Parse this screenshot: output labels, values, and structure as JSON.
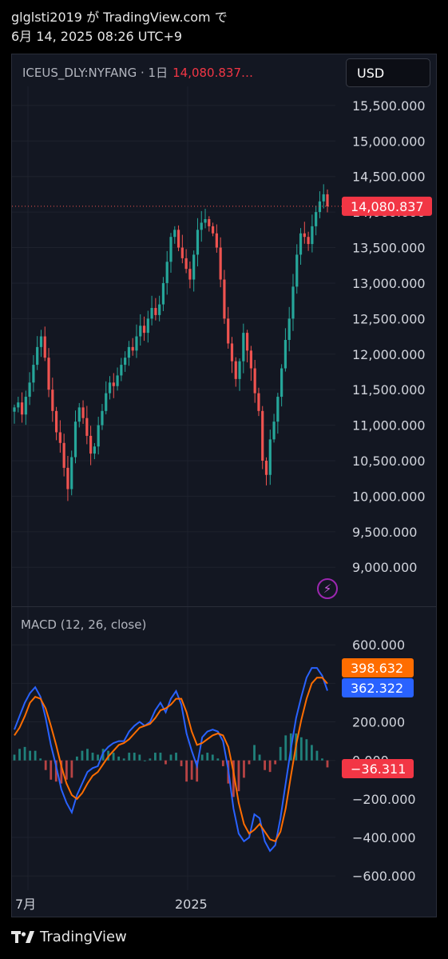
{
  "header": {
    "line1": "glglsti2019 が TradingView.com で",
    "line2": "6月 14, 2025 08:26 UTC+9"
  },
  "toolbar": {
    "symbol": "ICEUS_DLY:NYFANG · 1日",
    "last_value": "14,080.837…",
    "currency": "USD"
  },
  "footer": {
    "brand": "TradingView"
  },
  "colors": {
    "up": "#26a69a",
    "down": "#ef5350",
    "macd": "#2962ff",
    "signal": "#ff6d00",
    "price_tag": "#f23645"
  },
  "chart_data": [
    {
      "type": "candlestick",
      "title": "ICEUS_DLY:NYFANG · 1日",
      "y_ticks": [
        "15,500.000",
        "15,000.000",
        "14,500.000",
        "14,000.000",
        "13,500.000",
        "13,000.000",
        "12,500.000",
        "12,000.000",
        "11,500.000",
        "11,000.000",
        "10,500.000",
        "10,000.000",
        "9,500.000",
        "9,000.000"
      ],
      "ylim": [
        8800,
        15600
      ],
      "x_ticks": [
        "7月",
        "2025"
      ],
      "last_price_label": "14,080.837",
      "last_price": 14080.837,
      "approx_closes": [
        11250,
        11320,
        11150,
        11400,
        11600,
        11850,
        12100,
        12250,
        11950,
        11500,
        11200,
        10900,
        10750,
        10400,
        10100,
        10550,
        11050,
        11250,
        11100,
        10850,
        10600,
        10700,
        11000,
        11200,
        11450,
        11600,
        11550,
        11700,
        11850,
        11950,
        12100,
        12050,
        12250,
        12400,
        12300,
        12500,
        12650,
        12550,
        12700,
        13000,
        13300,
        13650,
        13750,
        13500,
        13350,
        13200,
        13050,
        13400,
        13750,
        13850,
        13900,
        13800,
        13700,
        13500,
        13050,
        12500,
        12150,
        11900,
        11650,
        11900,
        12300,
        12050,
        11800,
        11450,
        11200,
        10500,
        10300,
        10800,
        11050,
        11400,
        11800,
        12200,
        12500,
        12950,
        13400,
        13700,
        13650,
        13550,
        13800,
        14000,
        14150,
        14250,
        14080
      ]
    },
    {
      "type": "line",
      "title": "MACD (12, 26, close)",
      "y_ticks": [
        "600.000",
        "400.000",
        "200.000",
        "0.000",
        "−200.000",
        "−400.000",
        "−600.000"
      ],
      "ylim": [
        -620,
        630
      ],
      "series": [
        {
          "name": "",
          "values": [
            160,
            230,
            300,
            350,
            380,
            330,
            220,
            80,
            -30,
            -150,
            -220,
            -270,
            -180,
            -120,
            -60,
            -40,
            -30,
            40,
            70,
            90,
            100,
            100,
            150,
            180,
            200,
            180,
            200,
            260,
            300,
            250,
            320,
            360,
            290,
            140,
            50,
            -30,
            120,
            150,
            160,
            150,
            100,
            -50,
            -250,
            -380,
            -420,
            -400,
            -280,
            -300,
            -420,
            -470,
            -440,
            -300,
            -120,
            60,
            220,
            330,
            430,
            480,
            480,
            440,
            362.322
          ]
        },
        {
          "name": "",
          "values": [
            130,
            170,
            230,
            300,
            330,
            320,
            270,
            180,
            80,
            -30,
            -120,
            -180,
            -200,
            -170,
            -120,
            -80,
            -60,
            -20,
            20,
            50,
            80,
            90,
            110,
            140,
            170,
            180,
            190,
            220,
            260,
            270,
            290,
            320,
            320,
            250,
            150,
            80,
            90,
            110,
            130,
            140,
            130,
            70,
            -60,
            -220,
            -330,
            -380,
            -360,
            -330,
            -370,
            -410,
            -420,
            -370,
            -250,
            -80,
            80,
            210,
            320,
            400,
            430,
            430,
            398.632
          ]
        },
        {
          "name": "",
          "values": [
            30,
            60,
            70,
            50,
            50,
            10,
            -50,
            -100,
            -110,
            -120,
            -100,
            -90,
            20,
            50,
            60,
            40,
            30,
            60,
            50,
            40,
            20,
            10,
            40,
            40,
            30,
            0,
            10,
            40,
            40,
            -20,
            30,
            40,
            -30,
            -110,
            -100,
            -110,
            30,
            40,
            30,
            10,
            -30,
            -120,
            -190,
            -160,
            -90,
            -20,
            80,
            30,
            -50,
            -60,
            -20,
            70,
            130,
            140,
            140,
            120,
            110,
            80,
            50,
            10,
            -36.311
          ]
        }
      ],
      "series_labels": [
        "398.632",
        "362.322",
        "−36.311"
      ]
    }
  ]
}
